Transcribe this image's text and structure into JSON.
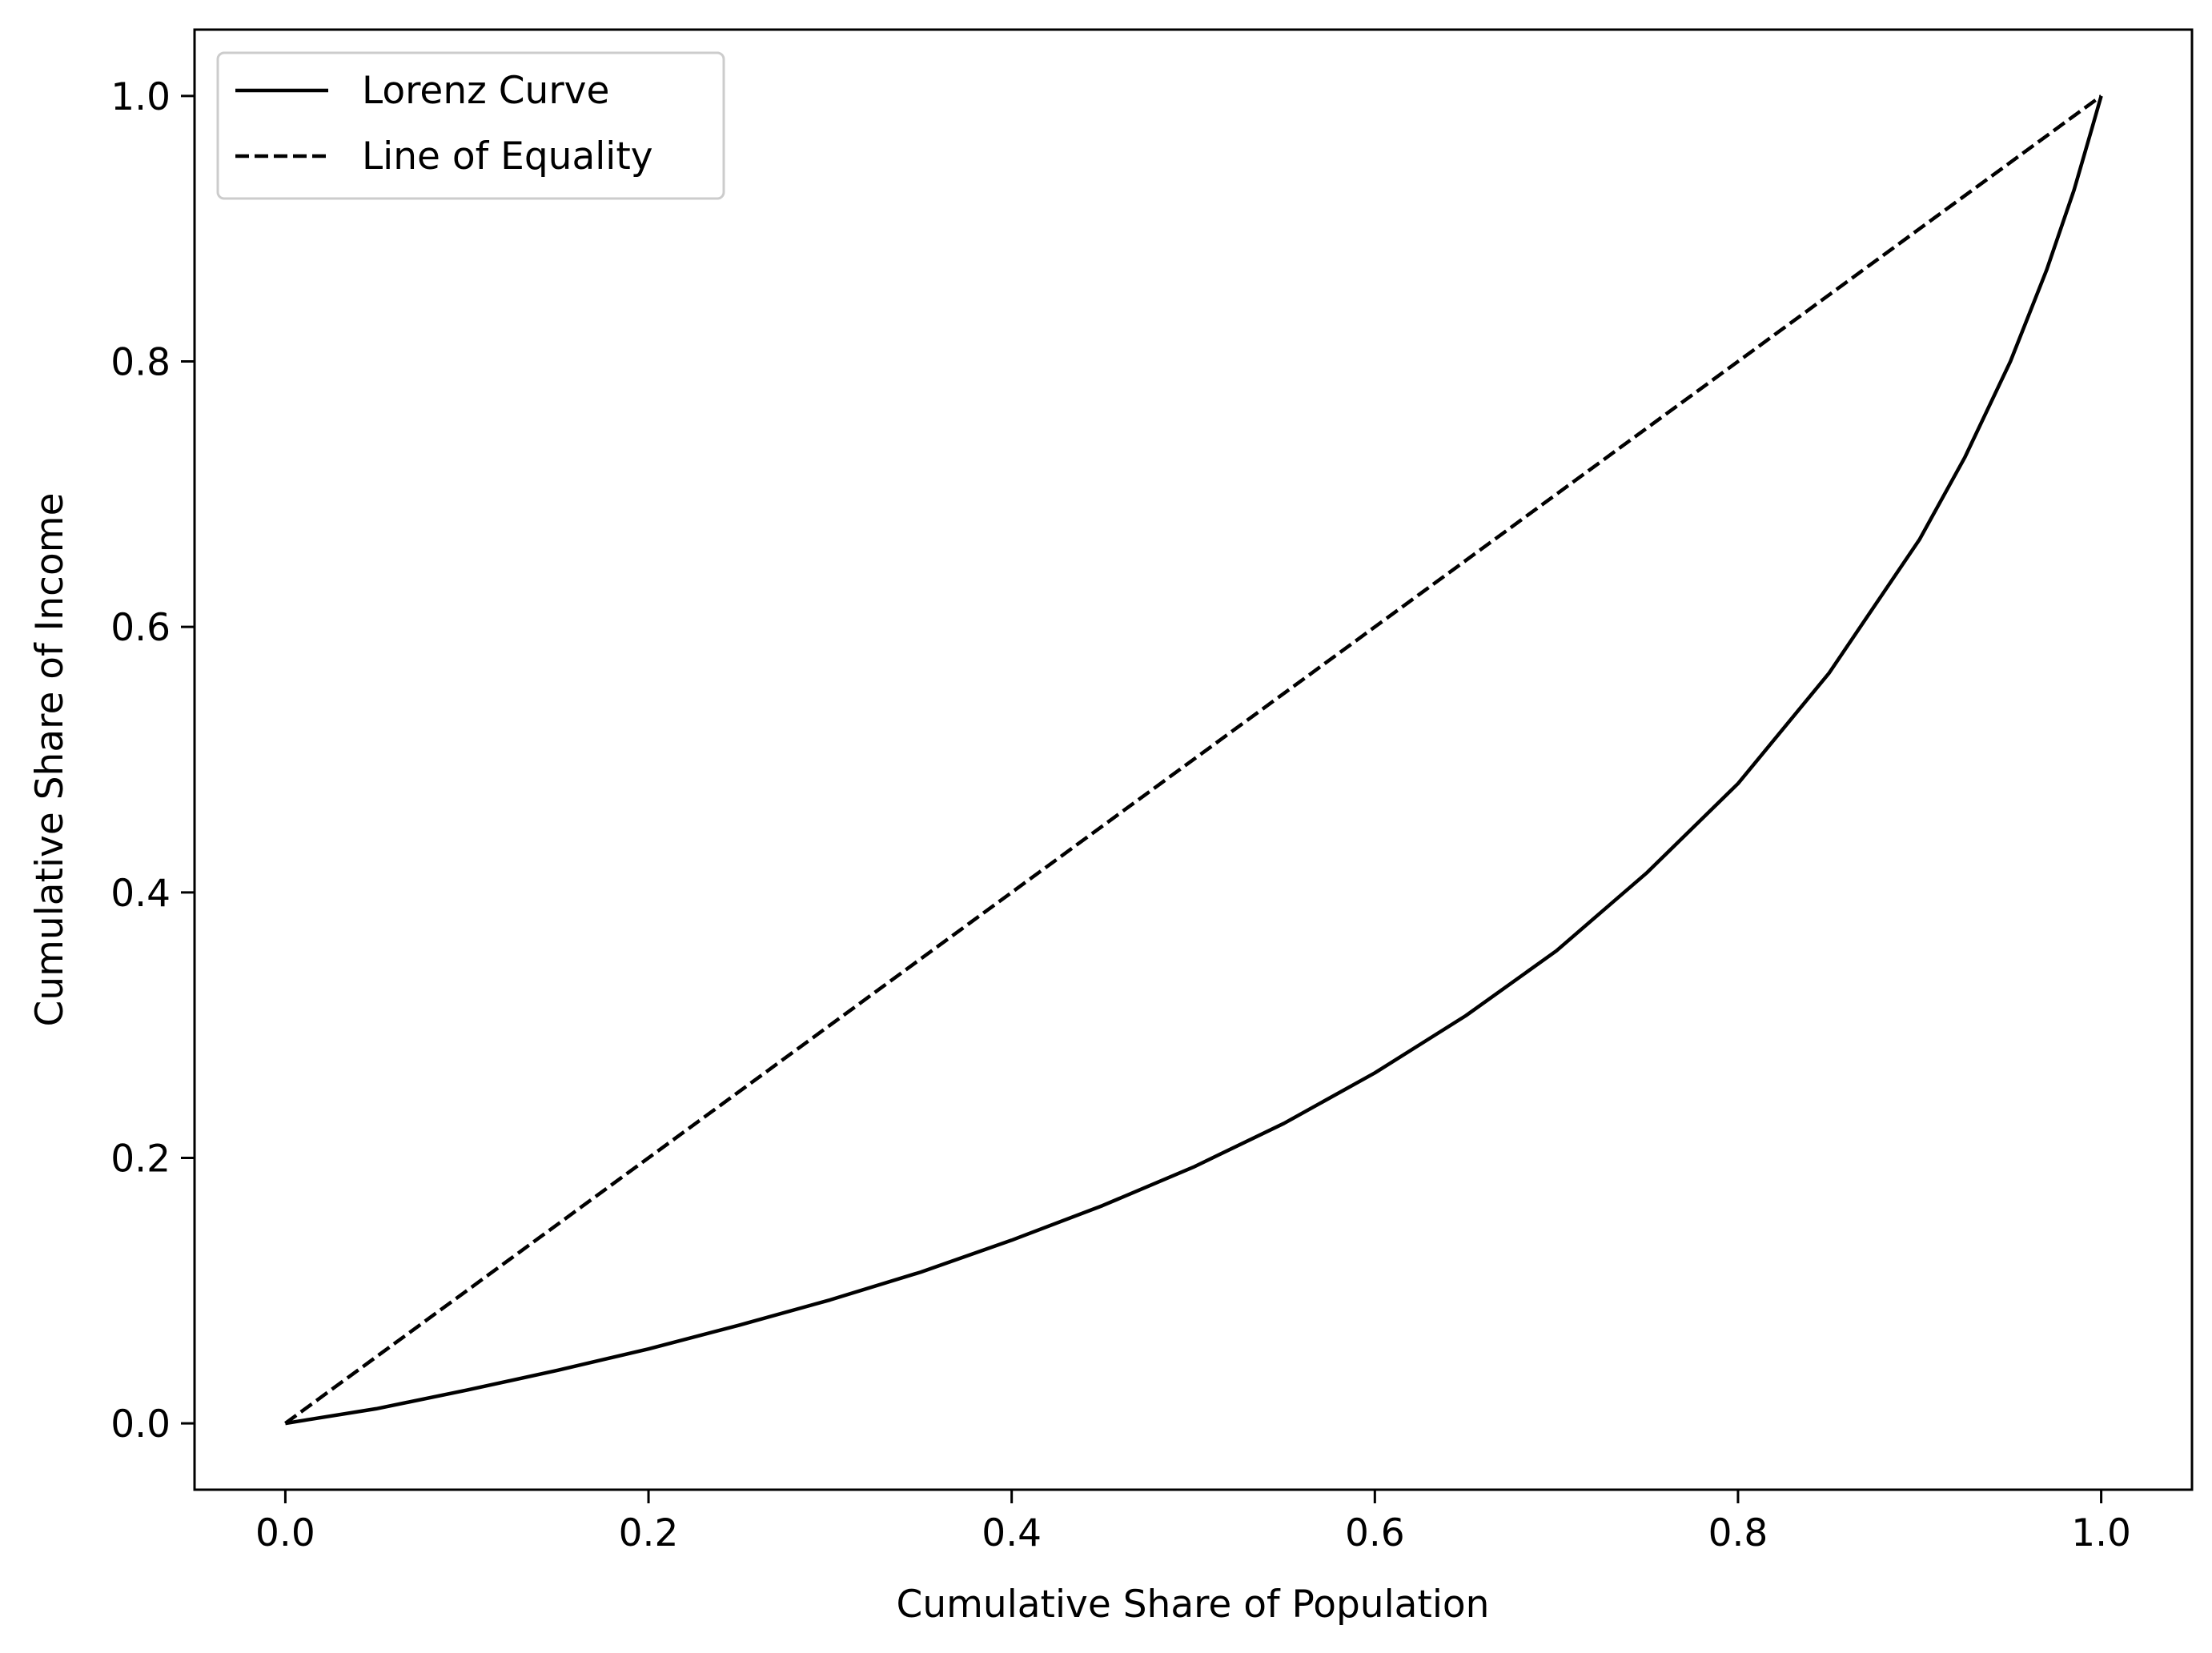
{
  "chart_data": {
    "type": "line",
    "title": "",
    "xlabel": "Cumulative Share of Population",
    "ylabel": "Cumulative Share of Income",
    "xlim": [
      -0.05,
      1.05
    ],
    "ylim": [
      -0.05,
      1.05
    ],
    "xticks": [
      0.0,
      0.2,
      0.4,
      0.6,
      0.8,
      1.0
    ],
    "xtick_labels": [
      "0.0",
      "0.2",
      "0.4",
      "0.6",
      "0.8",
      "1.0"
    ],
    "yticks": [
      0.0,
      0.2,
      0.4,
      0.6,
      0.8,
      1.0
    ],
    "ytick_labels": [
      "0.0",
      "0.2",
      "0.4",
      "0.6",
      "0.8",
      "1.0"
    ],
    "grid": false,
    "legend": {
      "position": "upper-left",
      "entries": [
        {
          "label": "Lorenz Curve",
          "style": "solid"
        },
        {
          "label": "Line of Equality",
          "style": "dashed"
        }
      ]
    },
    "series": [
      {
        "name": "Lorenz Curve",
        "color": "#000000",
        "style": "solid",
        "x": [
          0.0,
          0.05,
          0.1,
          0.15,
          0.2,
          0.25,
          0.3,
          0.35,
          0.4,
          0.45,
          0.5,
          0.55,
          0.6,
          0.65,
          0.7,
          0.75,
          0.8,
          0.85,
          0.9,
          0.925,
          0.95,
          0.97,
          0.985,
          0.995,
          1.0
        ],
        "y": [
          0.0,
          0.011,
          0.025,
          0.04,
          0.056,
          0.074,
          0.093,
          0.114,
          0.138,
          0.164,
          0.193,
          0.226,
          0.264,
          0.307,
          0.356,
          0.415,
          0.482,
          0.565,
          0.666,
          0.728,
          0.8,
          0.869,
          0.929,
          0.976,
          1.0
        ]
      },
      {
        "name": "Line of Equality",
        "color": "#000000",
        "style": "dashed",
        "x": [
          0.0,
          1.0
        ],
        "y": [
          0.0,
          1.0
        ]
      }
    ]
  }
}
